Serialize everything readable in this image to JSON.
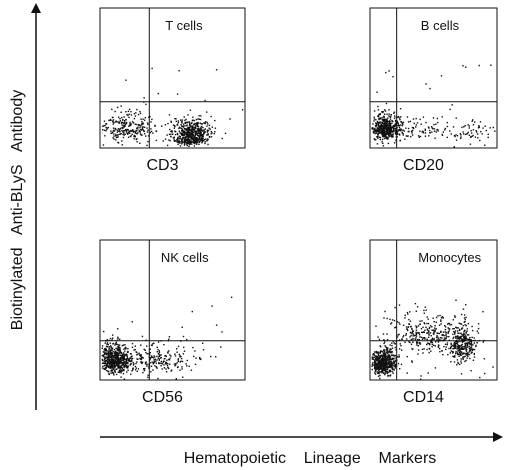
{
  "chart_data": {
    "type": "scatter",
    "xlabel": "Hematopoietic    Lineage    Markers",
    "ylabel": "Biotinylated   Anti-BLyS   Antibody",
    "panels": [
      {
        "id": "tcells",
        "title": "T cells",
        "xlabel": "CD3",
        "clusters": [
          {
            "cx": 0.18,
            "cy": 0.12,
            "sx": 0.1,
            "sy": 0.07,
            "n": 260
          },
          {
            "cx": 0.62,
            "cy": 0.1,
            "sx": 0.07,
            "sy": 0.06,
            "n": 380
          },
          {
            "cx": 0.62,
            "cy": 0.05,
            "sx": 0.05,
            "sy": 0.03,
            "n": 160
          }
        ],
        "scatter_points": 25
      },
      {
        "id": "bcells",
        "title": "B cells",
        "xlabel": "CD20",
        "clusters": [
          {
            "cx": 0.12,
            "cy": 0.12,
            "sx": 0.06,
            "sy": 0.06,
            "n": 520
          },
          {
            "cx": 0.4,
            "cy": 0.12,
            "sx": 0.1,
            "sy": 0.06,
            "n": 70
          },
          {
            "cx": 0.78,
            "cy": 0.1,
            "sx": 0.07,
            "sy": 0.06,
            "n": 60
          }
        ],
        "scatter_points": 20
      },
      {
        "id": "nkcells",
        "title": "NK cells",
        "xlabel": "CD56",
        "clusters": [
          {
            "cx": 0.1,
            "cy": 0.12,
            "sx": 0.05,
            "sy": 0.07,
            "n": 560
          },
          {
            "cx": 0.35,
            "cy": 0.12,
            "sx": 0.15,
            "sy": 0.07,
            "n": 260
          }
        ],
        "scatter_points": 25
      },
      {
        "id": "monocytes",
        "title": "Monocytes",
        "xlabel": "CD14",
        "clusters": [
          {
            "cx": 0.1,
            "cy": 0.1,
            "sx": 0.05,
            "sy": 0.06,
            "n": 520
          },
          {
            "cx": 0.45,
            "cy": 0.28,
            "sx": 0.16,
            "sy": 0.1,
            "n": 320
          },
          {
            "cx": 0.73,
            "cy": 0.22,
            "sx": 0.05,
            "sy": 0.09,
            "n": 280
          }
        ],
        "scatter_points": 40
      }
    ]
  }
}
